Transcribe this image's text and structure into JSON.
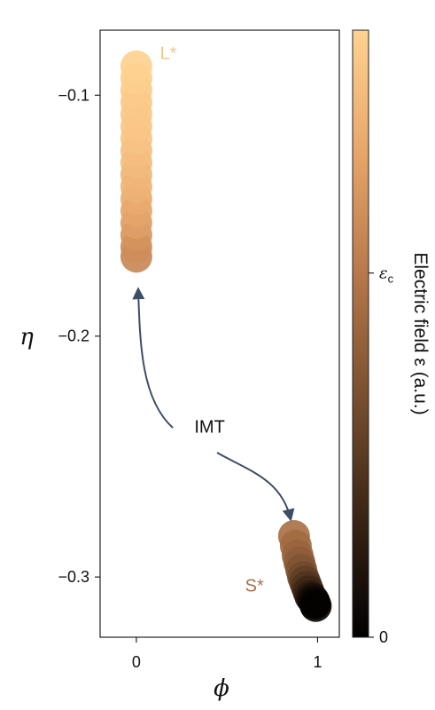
{
  "chart_data": {
    "type": "scatter",
    "xlabel": "ϕ",
    "ylabel": "η",
    "xlim": [
      -0.2,
      1.12
    ],
    "ylim": [
      -0.325,
      -0.073
    ],
    "xticks": [
      {
        "value": 0,
        "label": "0"
      },
      {
        "value": 1,
        "label": "1"
      }
    ],
    "yticks": [
      {
        "value": -0.1,
        "label": "−0.1"
      },
      {
        "value": -0.2,
        "label": "−0.2"
      },
      {
        "value": -0.3,
        "label": "−0.3"
      }
    ],
    "series": [
      {
        "name": "L*",
        "points": [
          {
            "x": 0.0,
            "y": -0.088,
            "field": 0.99
          },
          {
            "x": 0.0,
            "y": -0.093,
            "field": 0.98
          },
          {
            "x": 0.0,
            "y": -0.098,
            "field": 0.97
          },
          {
            "x": 0.0,
            "y": -0.103,
            "field": 0.96
          },
          {
            "x": 0.0,
            "y": -0.108,
            "field": 0.95
          },
          {
            "x": 0.0,
            "y": -0.113,
            "field": 0.94
          },
          {
            "x": 0.0,
            "y": -0.118,
            "field": 0.93
          },
          {
            "x": 0.0,
            "y": -0.123,
            "field": 0.91
          },
          {
            "x": 0.0,
            "y": -0.128,
            "field": 0.89
          },
          {
            "x": 0.0,
            "y": -0.133,
            "field": 0.87
          },
          {
            "x": 0.0,
            "y": -0.138,
            "field": 0.85
          },
          {
            "x": 0.0,
            "y": -0.143,
            "field": 0.82
          },
          {
            "x": 0.0,
            "y": -0.148,
            "field": 0.79
          },
          {
            "x": 0.0,
            "y": -0.153,
            "field": 0.76
          },
          {
            "x": 0.0,
            "y": -0.158,
            "field": 0.72
          },
          {
            "x": 0.0,
            "y": -0.163,
            "field": 0.69
          },
          {
            "x": 0.0,
            "y": -0.167,
            "field": 0.66
          }
        ]
      },
      {
        "name": "S*",
        "points": [
          {
            "x": 0.87,
            "y": -0.283,
            "field": 0.55
          },
          {
            "x": 0.88,
            "y": -0.287,
            "field": 0.53
          },
          {
            "x": 0.89,
            "y": -0.291,
            "field": 0.5
          },
          {
            "x": 0.9,
            "y": -0.294,
            "field": 0.46
          },
          {
            "x": 0.91,
            "y": -0.297,
            "field": 0.42
          },
          {
            "x": 0.92,
            "y": -0.3,
            "field": 0.37
          },
          {
            "x": 0.93,
            "y": -0.302,
            "field": 0.32
          },
          {
            "x": 0.94,
            "y": -0.304,
            "field": 0.27
          },
          {
            "x": 0.95,
            "y": -0.306,
            "field": 0.21
          },
          {
            "x": 0.96,
            "y": -0.308,
            "field": 0.15
          },
          {
            "x": 0.97,
            "y": -0.309,
            "field": 0.1
          },
          {
            "x": 0.98,
            "y": -0.31,
            "field": 0.06
          },
          {
            "x": 0.985,
            "y": -0.311,
            "field": 0.03
          },
          {
            "x": 0.99,
            "y": -0.312,
            "field": 0.01
          }
        ]
      }
    ],
    "annotations": {
      "L_label": {
        "text": "L*",
        "x": 0.13,
        "y": -0.085
      },
      "S_label": {
        "text": "S*",
        "x": 0.6,
        "y": -0.306
      },
      "IMT_label": {
        "text": "IMT",
        "x": 0.32,
        "y": -0.24
      },
      "arrow_color": "#3f4d66"
    },
    "colorbar": {
      "label": "Electric field ε (a.u.)",
      "ticks": [
        {
          "value": 0.0,
          "label": "0"
        },
        {
          "value": 0.6,
          "label": "ε_c"
        }
      ],
      "colormap": [
        "#000000",
        "#3a2515",
        "#7a5030",
        "#b8784a",
        "#e8a66a",
        "#ffd290"
      ]
    },
    "grid": false
  }
}
